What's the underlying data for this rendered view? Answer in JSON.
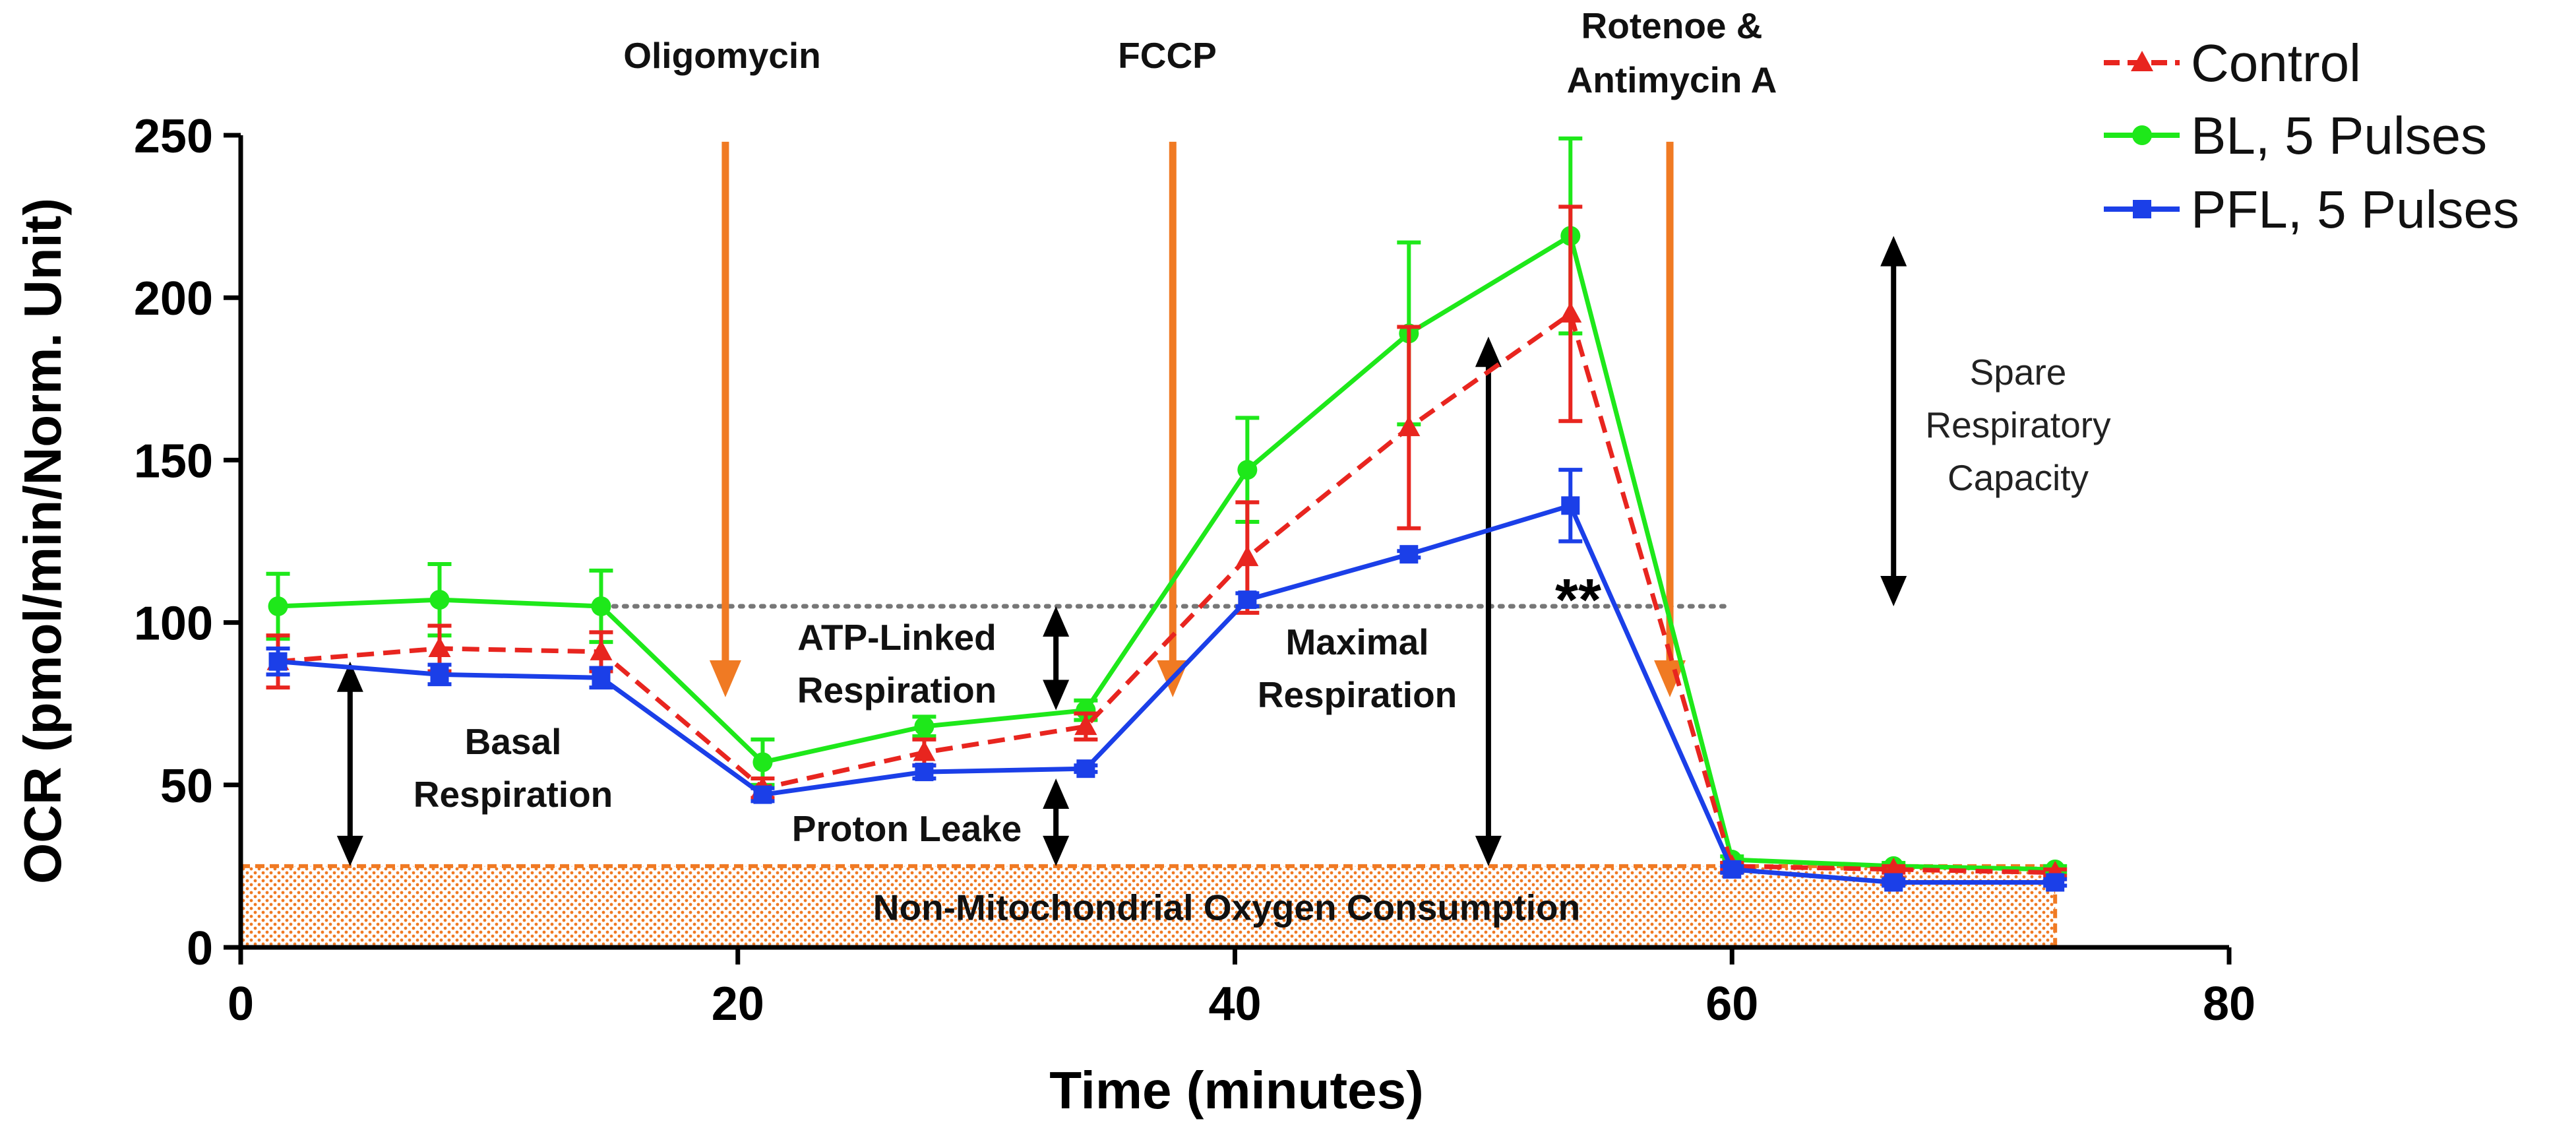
{
  "chart_data": {
    "type": "line",
    "title": "",
    "xlabel": "Time (minutes)",
    "ylabel": "OCR (pmol/min/Norm. Unit)",
    "xlim": [
      0,
      80
    ],
    "ylim": [
      0,
      250
    ],
    "x_ticks": [
      "0",
      "20",
      "40",
      "60",
      "80"
    ],
    "y_ticks": [
      "0",
      "50",
      "100",
      "150",
      "200",
      "250"
    ],
    "x": [
      1.5,
      8,
      14.5,
      21,
      27.5,
      34,
      40.5,
      47,
      53.5,
      60,
      66.5,
      73
    ],
    "series": [
      {
        "name": "Control",
        "color": "#e8251f",
        "marker": "triangle",
        "line_style": "dashed",
        "values": [
          88,
          92,
          91,
          49,
          60,
          68,
          120,
          160,
          195,
          25,
          24,
          23
        ],
        "errors": [
          8,
          7,
          6,
          3,
          4,
          4,
          17,
          31,
          33,
          1,
          1,
          1
        ]
      },
      {
        "name": "BL, 5 Pulses",
        "color": "#1ee81a",
        "marker": "circle",
        "line_style": "solid",
        "values": [
          105,
          107,
          105,
          57,
          68,
          73,
          147,
          189,
          219,
          27,
          25,
          24
        ],
        "errors": [
          10,
          11,
          11,
          7,
          3,
          3,
          16,
          28,
          30,
          1,
          1,
          1
        ]
      },
      {
        "name": "PFL, 5 Pulses",
        "color": "#1b3fe8",
        "marker": "square",
        "line_style": "solid",
        "values": [
          88,
          84,
          83,
          47,
          54,
          55,
          107,
          121,
          136,
          24,
          20,
          20
        ],
        "errors": [
          4,
          3,
          3,
          2,
          2,
          1,
          2,
          1,
          11,
          1,
          1,
          1
        ]
      }
    ],
    "reference_line": {
      "y": 105,
      "x_range": [
        15,
        60
      ],
      "style": "dotted",
      "color": "#777777"
    },
    "shaded_region": {
      "label": "Non-Mitochondrial Oxygen Consumption",
      "x_range": [
        0,
        73
      ],
      "y_range": [
        0,
        25
      ],
      "color": "#f07a23"
    },
    "injections": [
      {
        "x": 19.5,
        "lines": [
          "Oligomycin"
        ]
      },
      {
        "x": 37.5,
        "lines": [
          "FCCP"
        ]
      },
      {
        "x": 57.5,
        "lines": [
          "Rotenoe &",
          "Antimycin A"
        ]
      }
    ],
    "annotations": [
      {
        "name": "basal-respiration",
        "lines": [
          "Basal",
          "Respiration"
        ],
        "weight": "bold"
      },
      {
        "name": "atp-linked-respiration",
        "lines": [
          "ATP-Linked",
          "Respiration"
        ],
        "weight": "bold"
      },
      {
        "name": "proton-leak",
        "lines": [
          "Proton Leake"
        ],
        "weight": "bold"
      },
      {
        "name": "maximal-respiration",
        "lines": [
          "Maximal",
          "Respiration"
        ],
        "weight": "bold"
      },
      {
        "name": "spare-respiratory-capacity",
        "lines": [
          "Spare",
          "Respiratory",
          "Capacity"
        ],
        "weight": "normal"
      },
      {
        "name": "significance-stars",
        "lines": [
          "**"
        ],
        "weight": "bold"
      }
    ],
    "brackets": [
      {
        "name": "basal",
        "x": 4.4,
        "y_range": [
          25,
          88
        ]
      },
      {
        "name": "atp-linked",
        "x": 32.8,
        "y_range": [
          73,
          105
        ]
      },
      {
        "name": "proton-leak",
        "x": 32.8,
        "y_range": [
          25,
          52
        ]
      },
      {
        "name": "maximal",
        "x": 50.2,
        "y_range": [
          25,
          188
        ]
      },
      {
        "name": "spare-capacity",
        "x": 66.5,
        "y_range": [
          105,
          219
        ]
      }
    ],
    "legend": {
      "position": "top-right"
    }
  }
}
